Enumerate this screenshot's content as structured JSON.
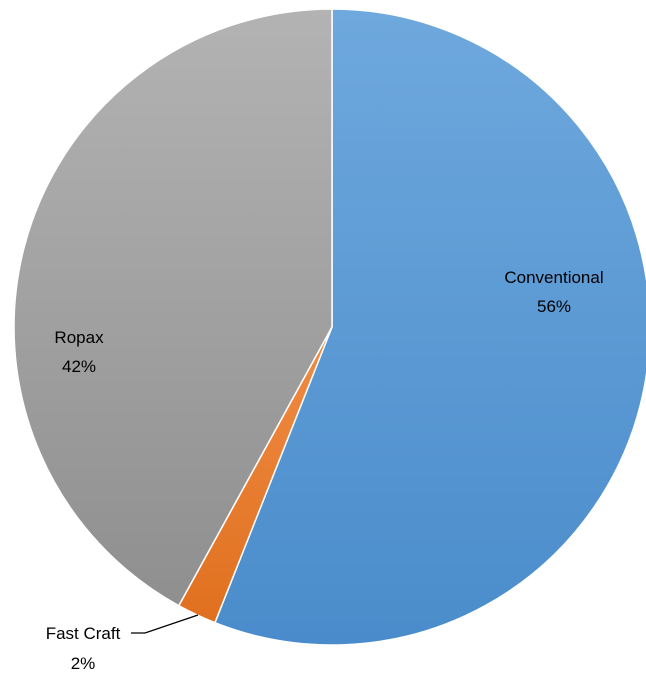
{
  "chart_data": {
    "type": "pie",
    "title": "",
    "start_angle_deg": 0,
    "direction": "clockwise",
    "slices": [
      {
        "name": "Conventional",
        "value": 56,
        "percent_label": "56%",
        "color": "#5b9bd5",
        "color_dark": "#4a8ccb",
        "color_light": "#6ea8dd"
      },
      {
        "name": "Fast Craft",
        "value": 2,
        "percent_label": "2%",
        "color": "#ed7d31",
        "color_dark": "#e0701f",
        "color_light": "#f08c45"
      },
      {
        "name": "Ropax",
        "value": 42,
        "percent_label": "42%",
        "color": "#a5a5a5",
        "color_dark": "#8f8f8f",
        "color_light": "#b3b3b3"
      }
    ]
  }
}
